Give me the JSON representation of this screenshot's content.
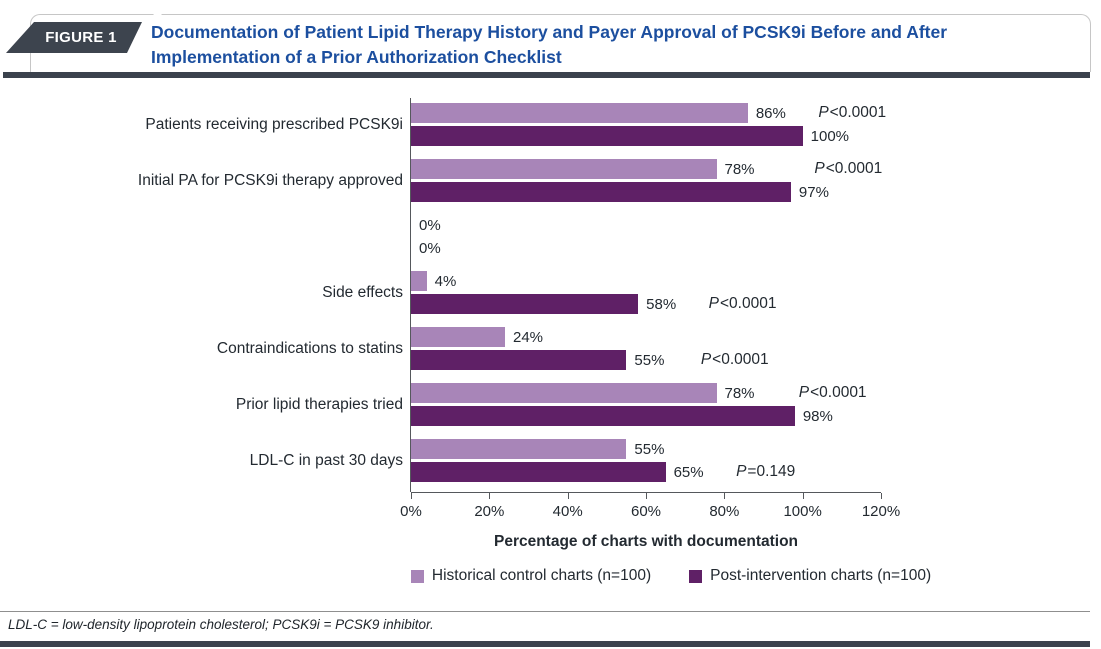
{
  "header": {
    "badge": "FIGURE 1",
    "title": "Documentation of Patient Lipid Therapy History and Payer Approval of PCSK9i Before and After Implementation of a Prior Authorization Checklist",
    "title_color": "#1c4f9f",
    "badge_bg": "#3d444e",
    "rule_color": "#3b424d"
  },
  "chart_data": {
    "type": "bar",
    "orientation": "horizontal",
    "categories": [
      "Patients receiving prescribed PCSK9i",
      "Initial PA for PCSK9i therapy approved",
      "",
      "Side effects",
      "Contraindications to statins",
      "Prior lipid therapies tried",
      "LDL-C in past 30 days"
    ],
    "series": [
      {
        "name": "Historical control charts (n=100)",
        "color": "#a885b8",
        "values": [
          86,
          78,
          0,
          4,
          24,
          78,
          55
        ]
      },
      {
        "name": "Post-intervention charts (n=100)",
        "color": "#5f2066",
        "values": [
          100,
          97,
          0,
          58,
          55,
          98,
          65
        ]
      }
    ],
    "value_suffix": "%",
    "p_values": [
      {
        "text": "P<0.0001",
        "x": 104,
        "align": "top"
      },
      {
        "text": "P<0.0001",
        "x": 103,
        "align": "top"
      },
      null,
      {
        "text": "P<0.0001",
        "x": 76,
        "align": "bottom"
      },
      {
        "text": "P<0.0001",
        "x": 74,
        "align": "bottom"
      },
      {
        "text": "P<0.0001",
        "x": 99,
        "align": "top"
      },
      {
        "text": "P=0.149",
        "x": 83,
        "align": "bottom"
      }
    ],
    "xlabel": "Percentage of charts with documentation",
    "x_ticks": [
      "0%",
      "20%",
      "40%",
      "60%",
      "80%",
      "100%",
      "120%"
    ],
    "xlim": [
      0,
      120
    ],
    "grid": false,
    "legend_position": "bottom"
  },
  "footnote": "LDL-C = low-density lipoprotein cholesterol; PCSK9i = PCSK9 inhibitor."
}
